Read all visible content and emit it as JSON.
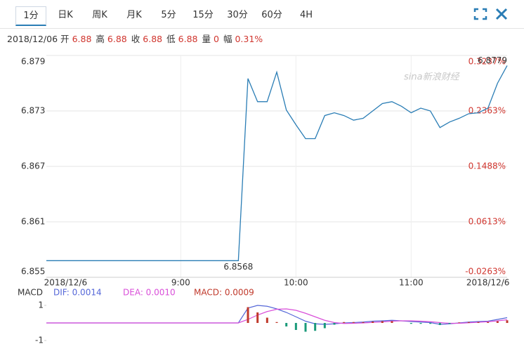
{
  "tabs": [
    "1分",
    "日K",
    "周K",
    "月K",
    "5分",
    "15分",
    "30分",
    "60分",
    "4H"
  ],
  "info": [
    "2018/12/06",
    "开",
    "6.88",
    "高",
    "6.88",
    "收",
    "6.88",
    "低",
    "6.88",
    "量",
    "0",
    "幅",
    "0.31%"
  ],
  "watermark": "sina新浪财经",
  "chart_data": [
    {
      "type": "line",
      "categories": [
        null,
        null,
        "2018/12/6",
        null,
        null,
        null,
        null,
        null,
        null,
        null,
        null,
        null,
        null,
        null,
        "9:00",
        null,
        null,
        null,
        null,
        null,
        null,
        null,
        null,
        null,
        null,
        null,
        "10:00",
        null,
        null,
        null,
        null,
        null,
        null,
        null,
        null,
        null,
        null,
        null,
        "11:00",
        null,
        null,
        null,
        null,
        null,
        null,
        null,
        "2018/12/6",
        null,
        null
      ],
      "values": [
        6.8568,
        6.8568,
        6.8568,
        6.8568,
        6.8568,
        6.8568,
        6.8568,
        6.8568,
        6.8568,
        6.8568,
        6.8568,
        6.8568,
        6.8568,
        6.8568,
        6.8568,
        6.8568,
        6.8568,
        6.8568,
        6.8568,
        6.8568,
        6.8568,
        6.8765,
        6.874,
        6.874,
        6.8772,
        6.8731,
        6.8715,
        6.87,
        6.87,
        6.8725,
        6.8728,
        6.8725,
        6.872,
        6.8722,
        6.873,
        6.8738,
        6.874,
        6.8735,
        6.8728,
        6.8733,
        6.873,
        6.8712,
        6.8718,
        6.8722,
        6.8727,
        6.8728,
        6.8733,
        6.876,
        6.8779
      ],
      "color": "#2a7db5",
      "ylim": [
        6.855,
        6.879
      ],
      "yticks": [
        6.855,
        6.861,
        6.867,
        6.873,
        6.879
      ],
      "y2lim": [
        -0.0263,
        0.3237
      ],
      "y2ticks": [
        {
          "value": -0.0263,
          "label": "-0.0263%"
        },
        {
          "value": 0.0613,
          "label": "0.0613%"
        },
        {
          "value": 0.1488,
          "label": "0.1488%"
        },
        {
          "value": 0.2363,
          "label": "0.2363%"
        },
        {
          "value": 0.3237,
          "label": "0.3237%"
        }
      ],
      "grid": true,
      "annotations": [
        {
          "label": "6.8779",
          "value": 6.8779
        },
        {
          "label": "6.8568",
          "value": 6.8568
        }
      ]
    },
    {
      "type": "macd",
      "y_label": "MACD",
      "ylim": [
        -1.2,
        1.3
      ],
      "yticks": [
        -1,
        1
      ],
      "series": [
        {
          "name": "DIF: 0.0014",
          "color": "#5567d8",
          "kind": "line",
          "values": [
            0,
            0,
            0,
            0,
            0,
            0,
            0,
            0,
            0,
            0,
            0,
            0,
            0,
            0,
            0,
            0,
            0,
            0,
            0,
            0,
            0,
            0.85,
            1.0,
            0.95,
            0.8,
            0.6,
            0.35,
            0.1,
            -0.05,
            -0.08,
            -0.05,
            0,
            0.02,
            0.05,
            0.1,
            0.12,
            0.15,
            0.12,
            0.08,
            0.05,
            0.02,
            -0.08,
            -0.05,
            0,
            0.05,
            0.08,
            0.1,
            0.2,
            0.3
          ]
        },
        {
          "name": "DEA: 0.0010",
          "color": "#d94fd9",
          "kind": "line",
          "values": [
            0,
            0,
            0,
            0,
            0,
            0,
            0,
            0,
            0,
            0,
            0,
            0,
            0,
            0,
            0,
            0,
            0,
            0,
            0,
            0,
            0,
            0.2,
            0.45,
            0.65,
            0.78,
            0.8,
            0.72,
            0.55,
            0.35,
            0.15,
            0.02,
            -0.03,
            -0.02,
            0,
            0.03,
            0.06,
            0.1,
            0.12,
            0.12,
            0.1,
            0.07,
            0.02,
            -0.02,
            -0.02,
            0.01,
            0.04,
            0.07,
            0.12,
            0.18
          ]
        },
        {
          "name": "MACD: 0.0009",
          "color": "#c0392b",
          "negative_color": "#1a9a7a",
          "kind": "bar",
          "values": [
            0,
            0,
            0,
            0,
            0,
            0,
            0,
            0,
            0,
            0,
            0,
            0,
            0,
            0,
            0,
            0,
            0,
            0,
            0,
            0,
            0,
            0.9,
            0.6,
            0.3,
            0.05,
            -0.2,
            -0.4,
            -0.5,
            -0.45,
            -0.3,
            -0.1,
            0.05,
            0.05,
            0.05,
            0.08,
            0.1,
            0.1,
            0,
            -0.05,
            -0.05,
            -0.05,
            -0.12,
            -0.05,
            0.03,
            0.05,
            0.05,
            0.05,
            0.1,
            0.15
          ]
        }
      ]
    }
  ]
}
